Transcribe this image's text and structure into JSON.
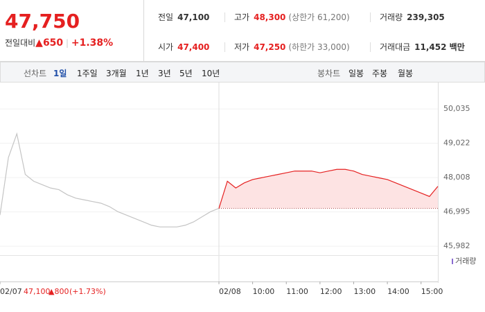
{
  "header": {
    "price": "47,750",
    "change_label": "전일대비",
    "change": "▲650",
    "change_pct": "+1.38%",
    "stats": [
      [
        {
          "label": "전일",
          "value": "47,100"
        },
        {
          "label": "고가",
          "value": "48,300",
          "extra": "(상한가 61,200)"
        },
        {
          "label": "거래량",
          "value": "239,305"
        }
      ],
      [
        {
          "label": "시가",
          "value": "47,400"
        },
        {
          "label": "저가",
          "value": "47,250",
          "extra": "(하한가 33,000)"
        },
        {
          "label": "거래대금",
          "value": "11,452 백만"
        }
      ]
    ]
  },
  "tabs": {
    "line_label": "선차트",
    "line_tabs": [
      "1일",
      "1주일",
      "3개월",
      "1년",
      "3년",
      "5년",
      "10년"
    ],
    "active": 0,
    "candle_label": "봉차트",
    "candle_tabs": [
      "일봉",
      "주봉",
      "월봉"
    ]
  },
  "chart_data": {
    "type": "line",
    "volume_label": "거래량",
    "annotation": {
      "close": "47,100",
      "change": "▲800",
      "pct": "(+1.73%)"
    },
    "x": [
      0,
      0.25,
      0.5,
      0.75,
      1,
      1.25,
      1.5,
      1.75,
      2,
      2.25,
      2.5,
      2.75,
      3,
      3.25,
      3.5,
      3.75,
      4,
      4.25,
      4.5,
      4.75,
      5,
      5.25,
      5.5,
      5.75,
      6,
      6.25,
      6.5,
      6.75,
      7,
      7.25,
      7.5,
      7.75,
      8,
      8.25,
      8.5,
      8.75,
      9,
      9.25,
      9.5,
      9.75,
      10,
      10.25,
      10.5,
      10.75,
      11,
      11.25,
      11.5,
      11.75,
      12,
      12.25,
      12.5,
      12.75,
      13
    ],
    "xlim": [
      0,
      13
    ],
    "xticks": [
      {
        "value": 0,
        "label": "02/07"
      },
      {
        "value": 6.5,
        "label": "02/08"
      },
      {
        "value": 7.5,
        "label": "10:00"
      },
      {
        "value": 8.5,
        "label": "11:00"
      },
      {
        "value": 9.5,
        "label": "12:00"
      },
      {
        "value": 10.5,
        "label": "13:00"
      },
      {
        "value": 11.5,
        "label": "14:00"
      },
      {
        "value": 12.5,
        "label": "15:00"
      }
    ],
    "ylim": [
      45840,
      50180
    ],
    "yticks": [
      {
        "value": 50035,
        "label": "50,035"
      },
      {
        "value": 49022,
        "label": "49,022"
      },
      {
        "value": 48008,
        "label": "48,008"
      },
      {
        "value": 46995,
        "label": "46,995"
      },
      {
        "value": 45982,
        "label": "45,982"
      }
    ],
    "baseline": 47100,
    "series": [
      {
        "color": "#c4c4c4",
        "values": [
          46900,
          48600,
          49300,
          48100,
          47900,
          47800,
          47700,
          47650,
          47500,
          47400,
          47350,
          47300,
          47250,
          47150,
          47000,
          46900,
          46800,
          46700,
          46600,
          46550,
          46550,
          46550,
          46600,
          46700,
          46850,
          47000,
          47100,
          null,
          null,
          null,
          null,
          null,
          null,
          null,
          null,
          null,
          null,
          null,
          null,
          null,
          null,
          null,
          null,
          null,
          null,
          null,
          null,
          null,
          null,
          null,
          null,
          null,
          null
        ]
      },
      {
        "color": "#e52020",
        "fill": "#fde3e3",
        "values": [
          null,
          null,
          null,
          null,
          null,
          null,
          null,
          null,
          null,
          null,
          null,
          null,
          null,
          null,
          null,
          null,
          null,
          null,
          null,
          null,
          null,
          null,
          null,
          null,
          null,
          null,
          47100,
          47900,
          47700,
          47850,
          47950,
          48000,
          48050,
          48100,
          48150,
          48200,
          48200,
          48200,
          48150,
          48200,
          48250,
          48250,
          48200,
          48100,
          48050,
          48000,
          47950,
          47850,
          47750,
          47650,
          47550,
          47450,
          47750
        ]
      }
    ]
  }
}
